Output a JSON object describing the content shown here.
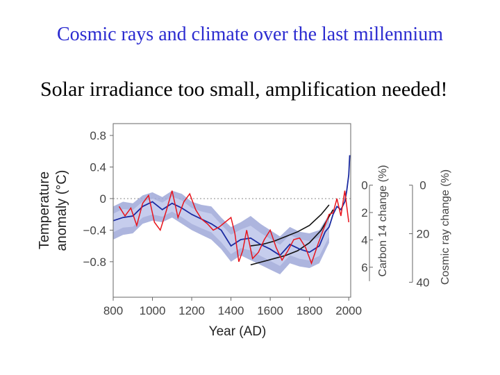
{
  "slide": {
    "title": "Cosmic rays and climate over the last millennium",
    "subtitle": "Solar irradiance too small, amplification needed!"
  },
  "colors": {
    "title": "#2b2bd0",
    "band": "#9fa8d8",
    "band_inner": "#c9cfee",
    "reconstruction": "#1a2aa0",
    "solar": "#e8141c",
    "carbon14": "#111111",
    "axis_text": "#444444"
  },
  "chart_data": {
    "type": "line",
    "xlabel": "Year (AD)",
    "ylabel_line1": "Temperature",
    "ylabel_line2": "anomaly (°C)",
    "xlim": [
      800,
      2010
    ],
    "ylim": [
      -1.25,
      0.95
    ],
    "x_ticks": [
      800,
      1000,
      1200,
      1400,
      1600,
      1800,
      2000
    ],
    "x_tick_labels": [
      "800",
      "1000",
      "1200",
      "1400",
      "1600",
      "1800",
      "2000"
    ],
    "y_ticks": [
      0.8,
      0.4,
      0,
      -0.4,
      -0.8
    ],
    "y_tick_labels": [
      "0.8",
      "0.4",
      "0",
      "−0.4",
      "−0.8"
    ],
    "zero_line": "dotted",
    "right_axis_1": {
      "label": "Carbon 14 change (%)",
      "ticks": [
        0,
        2,
        4,
        6
      ],
      "tick_labels": [
        "0",
        "2",
        "4",
        "6"
      ],
      "ylim_mapping": "0 at 0.17 °C, 6 at -0.87 °C"
    },
    "right_axis_2": {
      "label": "Cosmic ray change (%)",
      "ticks": [
        0,
        20,
        40
      ],
      "tick_labels": [
        "0",
        "20",
        "40"
      ],
      "ylim_mapping": "0 at 0.17 °C, 40 at -1.06 °C"
    },
    "series": [
      {
        "name": "uncertainty band",
        "kind": "band",
        "x": [
          800,
          850,
          900,
          950,
          1000,
          1050,
          1100,
          1150,
          1200,
          1250,
          1300,
          1350,
          1400,
          1450,
          1500,
          1550,
          1600,
          1650,
          1700,
          1750,
          1800,
          1850,
          1900
        ],
        "upper": [
          -0.1,
          -0.04,
          -0.06,
          0.04,
          0.08,
          0.02,
          0.1,
          0.06,
          -0.04,
          -0.08,
          -0.1,
          -0.24,
          -0.36,
          -0.3,
          -0.22,
          -0.32,
          -0.4,
          -0.48,
          -0.36,
          -0.42,
          -0.44,
          -0.4,
          -0.2
        ],
        "lower": [
          -0.52,
          -0.46,
          -0.44,
          -0.32,
          -0.28,
          -0.3,
          -0.24,
          -0.32,
          -0.4,
          -0.46,
          -0.52,
          -0.64,
          -0.8,
          -0.72,
          -0.78,
          -0.84,
          -0.9,
          -0.96,
          -0.82,
          -0.86,
          -0.88,
          -0.82,
          -0.56
        ]
      },
      {
        "name": "temperature reconstruction",
        "kind": "line",
        "x": [
          800,
          850,
          900,
          950,
          1000,
          1050,
          1100,
          1150,
          1200,
          1250,
          1300,
          1350,
          1400,
          1450,
          1500,
          1550,
          1600,
          1650,
          1700,
          1750,
          1800,
          1850,
          1880,
          1900,
          1920,
          1940,
          1960,
          1980,
          1990,
          2000,
          2005
        ],
        "values": [
          -0.28,
          -0.24,
          -0.22,
          -0.1,
          -0.04,
          -0.14,
          -0.06,
          -0.12,
          -0.2,
          -0.26,
          -0.32,
          -0.4,
          -0.6,
          -0.52,
          -0.5,
          -0.58,
          -0.64,
          -0.72,
          -0.58,
          -0.64,
          -0.68,
          -0.6,
          -0.42,
          -0.36,
          -0.2,
          -0.1,
          -0.14,
          -0.04,
          0.1,
          0.3,
          0.55
        ]
      },
      {
        "name": "solar-forced temperature",
        "kind": "line",
        "x": [
          830,
          860,
          890,
          920,
          950,
          980,
          1010,
          1040,
          1070,
          1100,
          1130,
          1160,
          1190,
          1220,
          1250,
          1280,
          1310,
          1340,
          1370,
          1400,
          1420,
          1440,
          1460,
          1480,
          1510,
          1540,
          1570,
          1600,
          1630,
          1660,
          1690,
          1720,
          1750,
          1780,
          1810,
          1840,
          1870,
          1900,
          1920,
          1940,
          1960,
          1980,
          2000
        ],
        "values": [
          -0.1,
          -0.22,
          -0.12,
          -0.34,
          -0.06,
          0.04,
          -0.3,
          -0.4,
          -0.16,
          0.1,
          -0.24,
          -0.04,
          0.06,
          -0.14,
          -0.26,
          -0.32,
          -0.4,
          -0.36,
          -0.3,
          -0.24,
          -0.44,
          -0.8,
          -0.66,
          -0.4,
          -0.76,
          -0.68,
          -0.52,
          -0.4,
          -0.62,
          -0.78,
          -0.66,
          -0.52,
          -0.5,
          -0.62,
          -0.82,
          -0.6,
          -0.4,
          -0.2,
          -0.18,
          0.0,
          -0.22,
          0.1,
          -0.3
        ]
      },
      {
        "name": "carbon 14 (upper curve)",
        "kind": "curve",
        "x": [
          1500,
          1560,
          1620,
          1680,
          1740,
          1800,
          1860,
          1900
        ],
        "values": [
          -0.6,
          -0.58,
          -0.54,
          -0.48,
          -0.42,
          -0.34,
          -0.2,
          -0.08
        ]
      },
      {
        "name": "carbon 14 (lower curve)",
        "kind": "curve",
        "x": [
          1500,
          1560,
          1620,
          1680,
          1740,
          1800,
          1860,
          1920
        ],
        "values": [
          -0.84,
          -0.8,
          -0.76,
          -0.72,
          -0.66,
          -0.56,
          -0.4,
          -0.14
        ]
      }
    ]
  }
}
